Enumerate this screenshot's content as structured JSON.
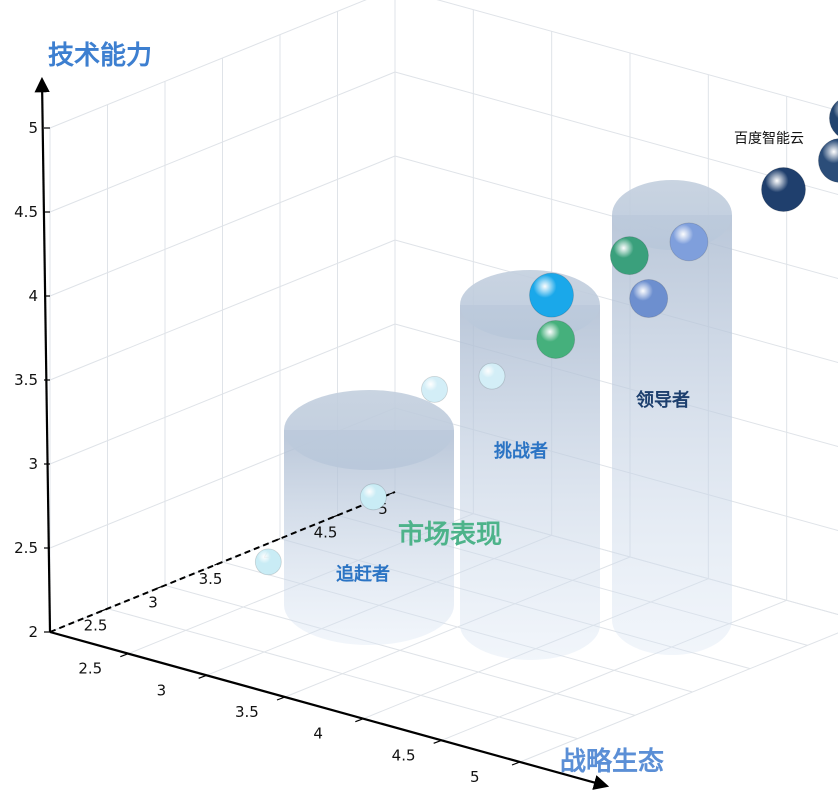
{
  "chart_data": {
    "type": "scatter3d",
    "axes": {
      "y": {
        "label": "技术能力",
        "ticks": [
          "2",
          "2.5",
          "3",
          "3.5",
          "4",
          "4.5",
          "5"
        ],
        "range": [
          2,
          5
        ]
      },
      "x": {
        "label": "战略生态",
        "ticks": [
          "2.5",
          "3",
          "3.5",
          "4",
          "4.5",
          "5"
        ],
        "range": [
          2,
          5
        ]
      },
      "z": {
        "label": "市场表现",
        "ticks": [
          "2.5",
          "3",
          "3.5",
          "4",
          "4.5",
          "5"
        ],
        "range": [
          2,
          5
        ]
      }
    },
    "tiers": [
      {
        "label": "追赶者",
        "color": "#2b74c4"
      },
      {
        "label": "挑战者",
        "color": "#2b74c4"
      },
      {
        "label": "领导者",
        "color": "#1d3f6e"
      }
    ],
    "annotation": "百度智能云",
    "points": [
      {
        "x": 3.32,
        "z": 2.1,
        "y": 2.73,
        "color": "#c9ecf5"
      },
      {
        "x": 3.55,
        "z": 2.7,
        "y": 3.01,
        "color": "#c9ecf5"
      },
      {
        "x": 3.5,
        "z": 3.3,
        "y": 3.47,
        "color": "#d3eef7"
      },
      {
        "x": 3.72,
        "z": 3.5,
        "y": 3.55,
        "color": "#d3eef7"
      },
      {
        "x": 4.2,
        "z": 3.4,
        "y": 3.92,
        "color": "#45b07c"
      },
      {
        "x": 4.1,
        "z": 3.5,
        "y": 4.13,
        "color": "#1aa8ea"
      },
      {
        "x": 4.23,
        "z": 4.0,
        "y": 4.26,
        "color": "#3aa07c"
      },
      {
        "x": 4.5,
        "z": 3.8,
        "y": 4.13,
        "color": "#6d8fcf"
      },
      {
        "x": 4.5,
        "z": 4.15,
        "y": 4.37,
        "color": "#7f9fdc"
      },
      {
        "x": 4.7,
        "z": 4.7,
        "y": 4.58,
        "color": "#1f3f6d"
      },
      {
        "x": 4.95,
        "z": 4.95,
        "y": 5.0,
        "color": "#22446f"
      },
      {
        "x": 5.1,
        "z": 4.65,
        "y": 4.87,
        "color": "#2b4d79"
      }
    ]
  }
}
